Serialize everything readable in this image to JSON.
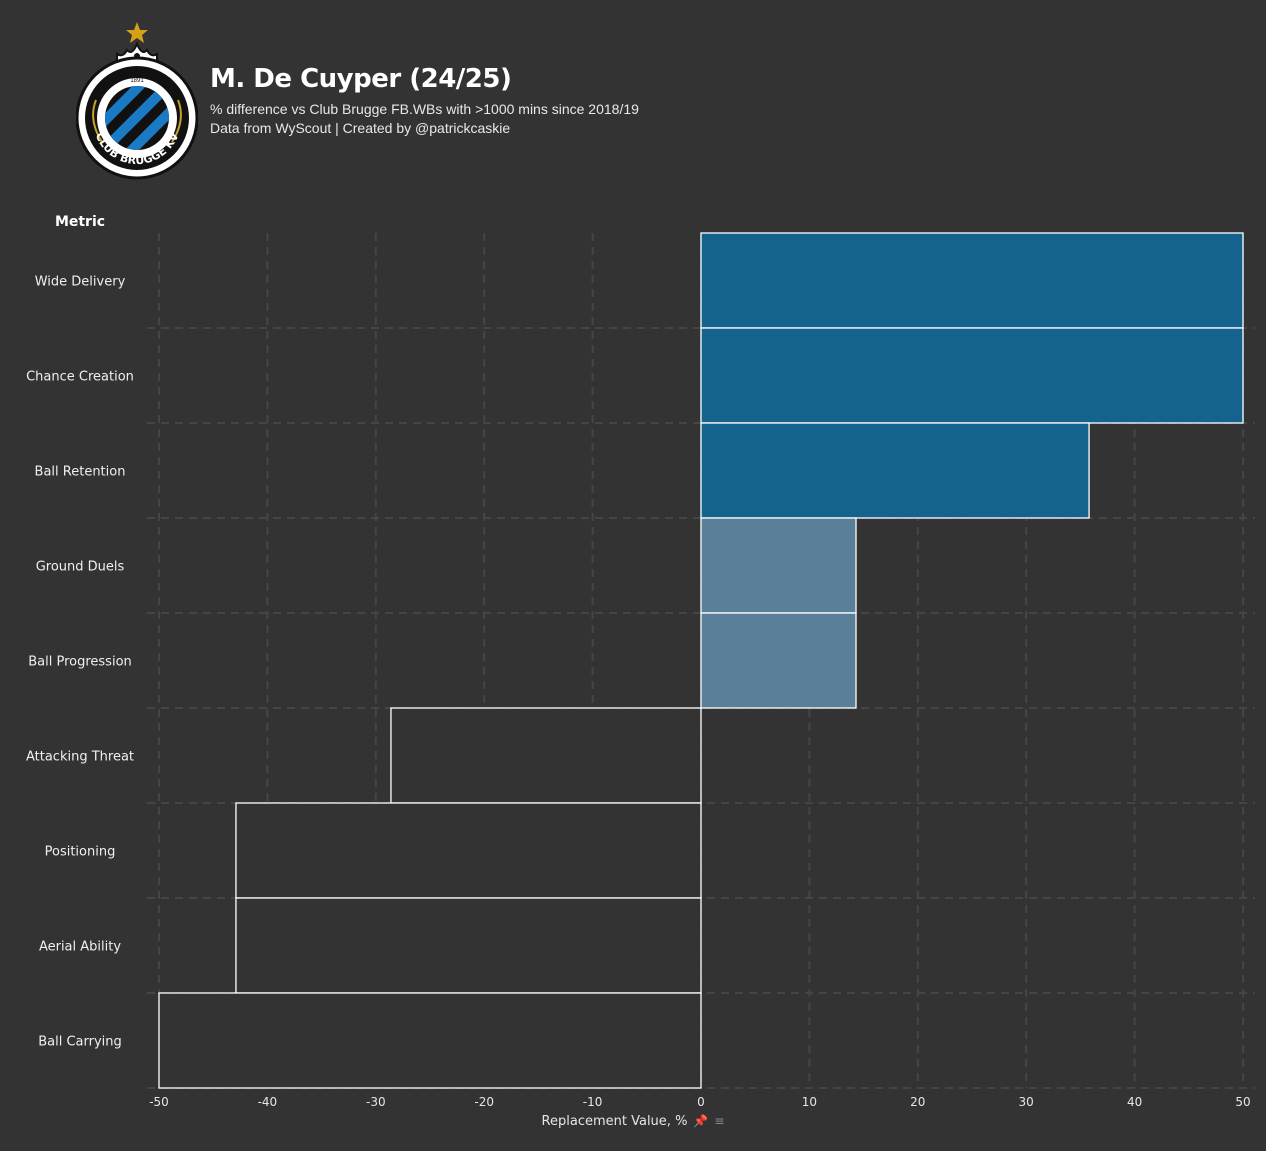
{
  "header": {
    "title": "M. De Cuyper (24/25)",
    "subtitle": "% difference vs Club Brugge FB.WBs with >1000 mins since 2018/19",
    "credit": "Data from WyScout | Created by @patrickcaskie"
  },
  "logo": {
    "year_text": "1891",
    "ring_text": "CLUB BRUGGE KV",
    "star_color": "#d4a017",
    "stripe_color": "#1a7ac4"
  },
  "chart_data": {
    "type": "bar",
    "orientation": "horizontal",
    "title": "M. De Cuyper (24/25)",
    "ylabel": "Metric",
    "xlabel": "Replacement Value, %",
    "xlim": [
      -50,
      50
    ],
    "xticks": [
      -50,
      -40,
      -30,
      -20,
      -10,
      0,
      10,
      20,
      30,
      40,
      50
    ],
    "grid": true,
    "categories": [
      "Wide Delivery",
      "Chance Creation",
      "Ball Retention",
      "Ground Duels",
      "Ball Progression",
      "Attacking Threat",
      "Positioning",
      "Aerial Ability",
      "Ball Carrying"
    ],
    "values": [
      50,
      50,
      35.8,
      14.3,
      14.3,
      -28.6,
      -42.9,
      -42.9,
      -50
    ],
    "colors": [
      "#15628f",
      "#15628f",
      "#15628f",
      "#5a7f98",
      "#5a7f98",
      "#333333",
      "#333333",
      "#333333",
      "#333333"
    ]
  },
  "colors": {
    "background": "#333333",
    "bar_outline": "#ffffff",
    "grid": "#454545",
    "text": "#f0f0f0"
  }
}
